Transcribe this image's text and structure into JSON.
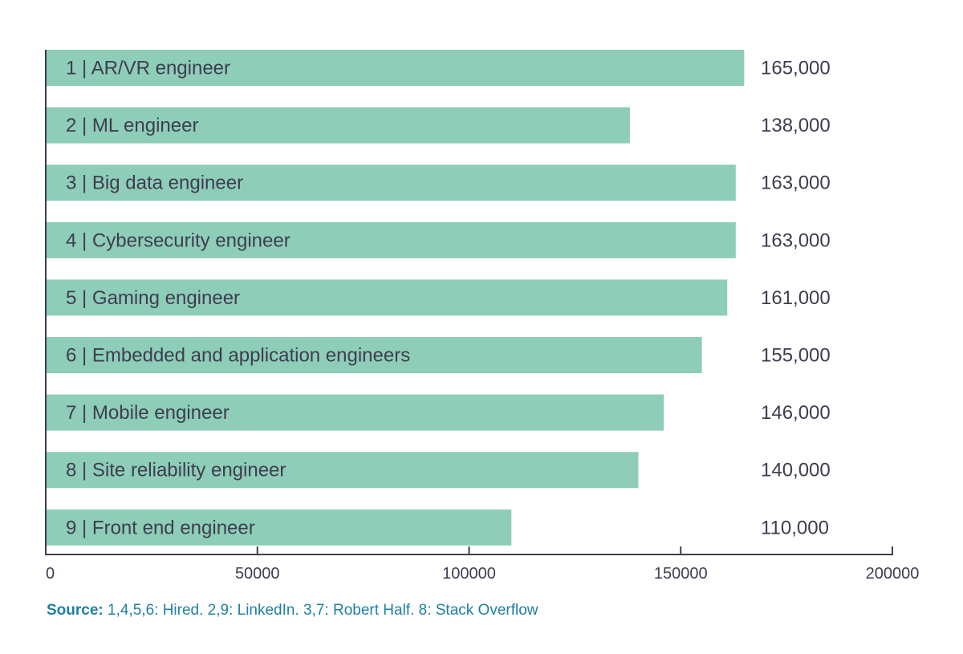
{
  "chart_data": {
    "type": "bar",
    "orientation": "horizontal",
    "categories": [
      "1 | AR/VR engineer",
      "2 | ML engineer",
      "3 | Big data engineer",
      "4 | Cybersecurity engineer",
      "5 | Gaming engineer",
      "6 | Embedded and application engineers",
      "7 | Mobile engineer",
      "8 | Site reliability engineer",
      "9 | Front end engineer"
    ],
    "values": [
      165000,
      138000,
      163000,
      163000,
      161000,
      155000,
      146000,
      140000,
      110000
    ],
    "value_labels": [
      "165,000",
      "138,000",
      "163,000",
      "163,000",
      "161,000",
      "155,000",
      "146,000",
      "140,000",
      "110,000"
    ],
    "xlim": [
      0,
      200000
    ],
    "xticks": [
      "0",
      "50000",
      "100000",
      "150000",
      "200000"
    ],
    "grid": false,
    "bar_color": "#8ecdb8",
    "title": "",
    "xlabel": "",
    "ylabel": ""
  },
  "source": {
    "label": "Source:",
    "text": " 1,4,5,6: Hired. 2,9: LinkedIn. 3,7: Robert Half. 8: Stack Overflow"
  }
}
